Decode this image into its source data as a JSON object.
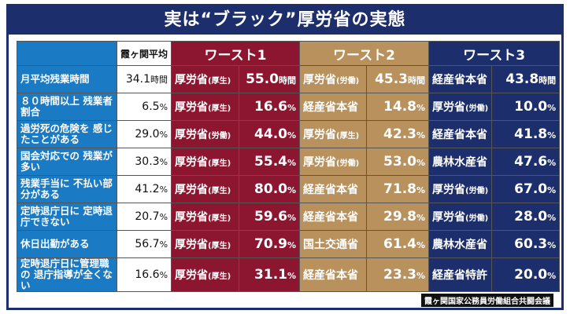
{
  "title": "実は“ブラック”厚労省の実態",
  "headers": {
    "avg": "霞ヶ関平均",
    "w1": "ワースト1",
    "w2": "ワースト2",
    "w3": "ワースト3"
  },
  "colors": {
    "label": "#1a7ac4",
    "worst1": "#8c1630",
    "worst2": "#b8915d",
    "worst3": "#1c2e6b",
    "title": "#1c2e6b"
  },
  "rows": [
    {
      "label": "月平均残業時間",
      "avg": "34.1",
      "unit": "時間",
      "w1n": "厚労省",
      "w1s": "(厚生)",
      "w1v": "55.0",
      "w2n": "厚労省",
      "w2s": "(労働)",
      "w2v": "45.3",
      "w3n": "経産省本省",
      "w3s": "",
      "w3v": "43.8"
    },
    {
      "label": "８０時間以上 残業者割合",
      "avg": "6.5",
      "unit": "%",
      "w1n": "厚労省",
      "w1s": "(厚生)",
      "w1v": "16.6",
      "w2n": "経産省本省",
      "w2s": "",
      "w2v": "14.8",
      "w3n": "厚労省",
      "w3s": "(労働)",
      "w3v": "10.0"
    },
    {
      "label": "過労死の危険を 感じたことがある",
      "avg": "29.0",
      "unit": "%",
      "w1n": "厚労省",
      "w1s": "(労働)",
      "w1v": "44.0",
      "w2n": "厚労省",
      "w2s": "(厚生)",
      "w2v": "42.3",
      "w3n": "経産省本省",
      "w3s": "",
      "w3v": "41.8"
    },
    {
      "label": "国会対応での 残業が多い",
      "avg": "30.3",
      "unit": "%",
      "w1n": "厚労省",
      "w1s": "(厚生)",
      "w1v": "55.4",
      "w2n": "厚労省",
      "w2s": "(労働)",
      "w2v": "53.0",
      "w3n": "農林水産省",
      "w3s": "",
      "w3v": "47.6"
    },
    {
      "label": "残業手当に 不払い部分がある",
      "avg": "41.2",
      "unit": "%",
      "w1n": "厚労省",
      "w1s": "(厚生)",
      "w1v": "80.0",
      "w2n": "経産省本省",
      "w2s": "",
      "w2v": "71.8",
      "w3n": "厚労省",
      "w3s": "(労働)",
      "w3v": "67.0"
    },
    {
      "label": "定時退庁日に 定時退庁できない",
      "avg": "20.7",
      "unit": "%",
      "w1n": "厚労省",
      "w1s": "(厚生)",
      "w1v": "59.6",
      "w2n": "経産省本省",
      "w2s": "",
      "w2v": "29.8",
      "w3n": "厚労省",
      "w3s": "(労働)",
      "w3v": "28.0"
    },
    {
      "label": "休日出勤がある",
      "avg": "56.7",
      "unit": "%",
      "w1n": "厚労省",
      "w1s": "(厚生)",
      "w1v": "70.9",
      "w2n": "国土交通省",
      "w2s": "",
      "w2v": "61.4",
      "w3n": "農林水産省",
      "w3s": "",
      "w3v": "60.3"
    },
    {
      "label": "定時退庁日に管理職の 退庁指導が全くない",
      "avg": "16.6",
      "unit": "%",
      "w1n": "厚労省",
      "w1s": "(厚生)",
      "w1v": "31.1",
      "w2n": "経産省本省",
      "w2s": "",
      "w2v": "23.3",
      "w3n": "経産省特許",
      "w3s": "",
      "w3v": "20.0"
    }
  ],
  "footer": "霞ヶ関国家公務員労働組合共闘会議"
}
